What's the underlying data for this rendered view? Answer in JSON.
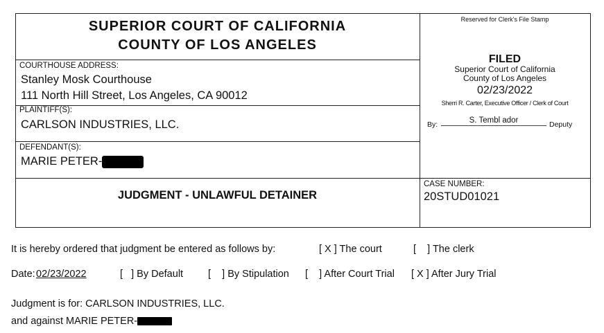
{
  "header": {
    "court_line1": "SUPERIOR COURT OF CALIFORNIA",
    "court_line2": "COUNTY OF LOS ANGELES",
    "courthouse_label": "COURTHOUSE ADDRESS:",
    "courthouse_name": "Stanley Mosk Courthouse",
    "courthouse_address": "111 North Hill Street, Los Angeles, CA 90012",
    "plaintiff_label": "PLAINTIFF(S):",
    "plaintiff": "CARLSON INDUSTRIES, LLC.",
    "defendant_label": "DEFENDANT(S):",
    "defendant": "MARIE PETER-",
    "document_title": "JUDGMENT - UNLAWFUL DETAINER",
    "case_number_label": "CASE NUMBER:",
    "case_number": "20STUD01021"
  },
  "stamp": {
    "reserved": "Reserved for Clerk's File Stamp",
    "filed": "FILED",
    "court": "Superior Court of California",
    "county": "County of Los Angeles",
    "date": "02/23/2022",
    "officer": "Sherri R. Carter, Executive Officer / Clerk of Court",
    "by_label": "By:",
    "clerk": "S. Tembl ador",
    "deputy": "Deputy"
  },
  "body": {
    "order_text": "It is hereby ordered that judgment be entered as follows by:",
    "court_option": "[ X ] The court",
    "clerk_option": "[    ] The clerk",
    "date_label": "Date:",
    "date_value": "02/23/2022",
    "by_default": "[   ] By Default",
    "by_stipulation": "[    ] By Stipulation",
    "after_court_trial": "[    ] After Court Trial",
    "after_jury_trial": "[ X ] After Jury Trial",
    "judgment_for": "Judgment is for: CARLSON INDUSTRIES, LLC.",
    "against": "and against MARIE PETER-"
  }
}
